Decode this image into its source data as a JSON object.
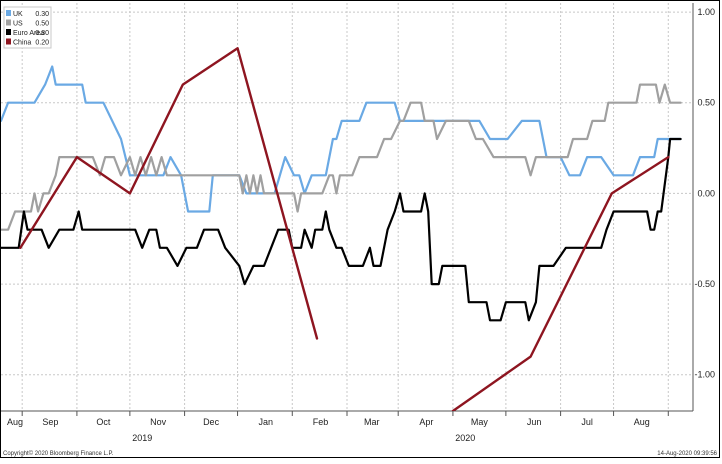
{
  "footer": {
    "copyright": "Copyright© 2020 Bloomberg Finance L.P.",
    "timestamp": "14-Aug-2020 09:39:56"
  },
  "colors": {
    "UK": "#6aa9e4",
    "US": "#a0a0a0",
    "Euro Area": "#000000",
    "China": "#8e1520",
    "grid": "#c8c8c8"
  },
  "chart_data": {
    "type": "line",
    "title": "",
    "xlabel": "",
    "ylabel": "",
    "grid": true,
    "legend_position": "top-left",
    "x_range": [
      "2019-07-20",
      "2020-08-15"
    ],
    "ylim": [
      -1.2,
      1.05
    ],
    "yticks": [
      1.0,
      0.5,
      0.0,
      -0.5,
      -1.0
    ],
    "ytick_labels": [
      "1.00",
      "0.50",
      "0.00",
      "-0.50",
      "-1.00"
    ],
    "xticks": [
      {
        "date": "2019-08-01",
        "label": "Aug"
      },
      {
        "date": "2019-09-01",
        "label": "Sep"
      },
      {
        "date": "2019-10-01",
        "label": "Oct"
      },
      {
        "date": "2019-11-01",
        "label": "Nov"
      },
      {
        "date": "2019-12-01",
        "label": "Dec"
      },
      {
        "date": "2020-01-01",
        "label": "Jan"
      },
      {
        "date": "2020-02-01",
        "label": "Feb"
      },
      {
        "date": "2020-03-01",
        "label": "Mar"
      },
      {
        "date": "2020-04-01",
        "label": "Apr"
      },
      {
        "date": "2020-05-01",
        "label": "May"
      },
      {
        "date": "2020-06-01",
        "label": "Jun"
      },
      {
        "date": "2020-07-01",
        "label": "Jul"
      },
      {
        "date": "2020-08-01",
        "label": "Aug"
      }
    ],
    "year_labels": [
      {
        "date": "2019-10-08",
        "label": "2019"
      },
      {
        "date": "2020-04-08",
        "label": "2020"
      }
    ],
    "series": [
      {
        "name": "UK",
        "last_value": "0.30",
        "points": [
          [
            "2019-07-20",
            0.4
          ],
          [
            "2019-07-24",
            0.5
          ],
          [
            "2019-08-08",
            0.5
          ],
          [
            "2019-08-14",
            0.6
          ],
          [
            "2019-08-18",
            0.7
          ],
          [
            "2019-08-20",
            0.6
          ],
          [
            "2019-09-01",
            0.6
          ],
          [
            "2019-09-04",
            0.6
          ],
          [
            "2019-09-06",
            0.5
          ],
          [
            "2019-09-16",
            0.5
          ],
          [
            "2019-09-26",
            0.3
          ],
          [
            "2019-10-01",
            0.1
          ],
          [
            "2019-10-20",
            0.1
          ],
          [
            "2019-10-24",
            0.2
          ],
          [
            "2019-10-30",
            0.1
          ],
          [
            "2019-11-03",
            -0.1
          ],
          [
            "2019-11-15",
            -0.1
          ],
          [
            "2019-11-17",
            0.1
          ],
          [
            "2019-11-25",
            0.1
          ],
          [
            "2019-12-02",
            0.1
          ],
          [
            "2019-12-06",
            0.0
          ],
          [
            "2019-12-22",
            0.0
          ],
          [
            "2019-12-28",
            0.2
          ],
          [
            "2020-01-02",
            0.1
          ],
          [
            "2020-01-05",
            0.1
          ],
          [
            "2020-01-08",
            0.0
          ],
          [
            "2020-01-12",
            0.1
          ],
          [
            "2020-01-20",
            0.1
          ],
          [
            "2020-01-24",
            0.3
          ],
          [
            "2020-01-26",
            0.3
          ],
          [
            "2020-01-29",
            0.4
          ],
          [
            "2020-02-08",
            0.4
          ],
          [
            "2020-02-12",
            0.5
          ],
          [
            "2020-02-28",
            0.5
          ],
          [
            "2020-03-02",
            0.4
          ],
          [
            "2020-03-10",
            0.4
          ],
          [
            "2020-03-14",
            0.4
          ],
          [
            "2020-03-24",
            0.4
          ],
          [
            "2020-04-08",
            0.4
          ],
          [
            "2020-04-16",
            0.4
          ],
          [
            "2020-04-22",
            0.3
          ],
          [
            "2020-05-02",
            0.3
          ],
          [
            "2020-05-10",
            0.4
          ],
          [
            "2020-05-20",
            0.4
          ],
          [
            "2020-05-24",
            0.2
          ],
          [
            "2020-06-01",
            0.2
          ],
          [
            "2020-06-06",
            0.1
          ],
          [
            "2020-06-12",
            0.1
          ],
          [
            "2020-06-16",
            0.2
          ],
          [
            "2020-06-24",
            0.2
          ],
          [
            "2020-07-01",
            0.1
          ],
          [
            "2020-07-12",
            0.1
          ],
          [
            "2020-07-16",
            0.2
          ],
          [
            "2020-07-24",
            0.2
          ],
          [
            "2020-07-26",
            0.3
          ],
          [
            "2020-08-08",
            0.3
          ]
        ]
      },
      {
        "name": "US",
        "last_value": "0.50",
        "points": [
          [
            "2019-07-20",
            -0.2
          ],
          [
            "2019-07-24",
            -0.2
          ],
          [
            "2019-07-28",
            -0.1
          ],
          [
            "2019-08-06",
            -0.1
          ],
          [
            "2019-08-08",
            0.0
          ],
          [
            "2019-08-10",
            -0.1
          ],
          [
            "2019-08-13",
            0.0
          ],
          [
            "2019-08-16",
            0.0
          ],
          [
            "2019-08-20",
            0.1
          ],
          [
            "2019-08-22",
            0.2
          ],
          [
            "2019-09-01",
            0.2
          ],
          [
            "2019-09-05",
            0.2
          ],
          [
            "2019-09-10",
            0.2
          ],
          [
            "2019-09-14",
            0.1
          ],
          [
            "2019-09-17",
            0.2
          ],
          [
            "2019-09-22",
            0.2
          ],
          [
            "2019-09-26",
            0.1
          ],
          [
            "2019-10-01",
            0.2
          ],
          [
            "2019-10-04",
            0.1
          ],
          [
            "2019-10-07",
            0.2
          ],
          [
            "2019-10-10",
            0.1
          ],
          [
            "2019-10-13",
            0.2
          ],
          [
            "2019-10-16",
            0.1
          ],
          [
            "2019-10-19",
            0.2
          ],
          [
            "2019-10-22",
            0.1
          ],
          [
            "2019-10-28",
            0.1
          ],
          [
            "2019-11-08",
            0.1
          ],
          [
            "2019-11-14",
            0.1
          ],
          [
            "2019-11-22",
            0.1
          ],
          [
            "2019-11-26",
            0.1
          ],
          [
            "2019-11-28",
            0.1
          ],
          [
            "2019-12-02",
            0.1
          ],
          [
            "2019-12-04",
            0.0
          ],
          [
            "2019-12-06",
            0.1
          ],
          [
            "2019-12-08",
            0.0
          ],
          [
            "2019-12-10",
            0.1
          ],
          [
            "2019-12-12",
            0.0
          ],
          [
            "2019-12-14",
            0.1
          ],
          [
            "2019-12-16",
            0.0
          ],
          [
            "2019-12-18",
            0.0
          ],
          [
            "2019-12-26",
            0.0
          ],
          [
            "2020-01-02",
            0.0
          ],
          [
            "2020-01-04",
            -0.1
          ],
          [
            "2020-01-06",
            0.0
          ],
          [
            "2020-01-10",
            0.0
          ],
          [
            "2020-01-18",
            0.0
          ],
          [
            "2020-01-22",
            0.1
          ],
          [
            "2020-01-24",
            0.1
          ],
          [
            "2020-01-26",
            0.0
          ],
          [
            "2020-01-28",
            0.1
          ],
          [
            "2020-02-01",
            0.1
          ],
          [
            "2020-02-04",
            0.1
          ],
          [
            "2020-02-08",
            0.2
          ],
          [
            "2020-02-10",
            0.2
          ],
          [
            "2020-02-14",
            0.2
          ],
          [
            "2020-02-18",
            0.2
          ],
          [
            "2020-02-22",
            0.3
          ],
          [
            "2020-02-26",
            0.3
          ],
          [
            "2020-03-02",
            0.4
          ],
          [
            "2020-03-04",
            0.4
          ],
          [
            "2020-03-08",
            0.5
          ],
          [
            "2020-03-14",
            0.5
          ],
          [
            "2020-03-16",
            0.4
          ],
          [
            "2020-03-21",
            0.4
          ],
          [
            "2020-03-23",
            0.3
          ],
          [
            "2020-03-28",
            0.4
          ],
          [
            "2020-04-05",
            0.4
          ],
          [
            "2020-04-10",
            0.4
          ],
          [
            "2020-04-14",
            0.3
          ],
          [
            "2020-04-18",
            0.3
          ],
          [
            "2020-04-24",
            0.2
          ],
          [
            "2020-05-06",
            0.2
          ],
          [
            "2020-05-12",
            0.2
          ],
          [
            "2020-05-15",
            0.1
          ],
          [
            "2020-05-18",
            0.2
          ],
          [
            "2020-05-24",
            0.2
          ],
          [
            "2020-06-01",
            0.2
          ],
          [
            "2020-06-05",
            0.2
          ],
          [
            "2020-06-08",
            0.3
          ],
          [
            "2020-06-16",
            0.3
          ],
          [
            "2020-06-19",
            0.4
          ],
          [
            "2020-06-26",
            0.4
          ],
          [
            "2020-06-28",
            0.5
          ],
          [
            "2020-07-01",
            0.5
          ],
          [
            "2020-07-04",
            0.5
          ],
          [
            "2020-07-08",
            0.5
          ],
          [
            "2020-07-10",
            0.5
          ],
          [
            "2020-07-14",
            0.5
          ],
          [
            "2020-07-16",
            0.6
          ],
          [
            "2020-07-25",
            0.6
          ],
          [
            "2020-07-27",
            0.5
          ],
          [
            "2020-07-30",
            0.6
          ],
          [
            "2020-08-02",
            0.5
          ],
          [
            "2020-08-08",
            0.5
          ]
        ]
      },
      {
        "name": "Euro Area",
        "last_value": "0.30",
        "points": [
          [
            "2019-07-20",
            -0.3
          ],
          [
            "2019-07-30",
            -0.3
          ],
          [
            "2019-08-02",
            -0.1
          ],
          [
            "2019-08-04",
            -0.2
          ],
          [
            "2019-08-12",
            -0.2
          ],
          [
            "2019-08-16",
            -0.3
          ],
          [
            "2019-08-22",
            -0.2
          ],
          [
            "2019-08-30",
            -0.2
          ],
          [
            "2019-09-02",
            -0.1
          ],
          [
            "2019-09-04",
            -0.2
          ],
          [
            "2019-09-14",
            -0.2
          ],
          [
            "2019-09-18",
            -0.2
          ],
          [
            "2019-09-22",
            -0.2
          ],
          [
            "2019-09-30",
            -0.2
          ],
          [
            "2019-10-04",
            -0.2
          ],
          [
            "2019-10-08",
            -0.3
          ],
          [
            "2019-10-12",
            -0.2
          ],
          [
            "2019-10-16",
            -0.2
          ],
          [
            "2019-10-18",
            -0.3
          ],
          [
            "2019-10-22",
            -0.3
          ],
          [
            "2019-10-28",
            -0.4
          ],
          [
            "2019-11-02",
            -0.3
          ],
          [
            "2019-11-08",
            -0.3
          ],
          [
            "2019-11-12",
            -0.2
          ],
          [
            "2019-11-20",
            -0.2
          ],
          [
            "2019-11-24",
            -0.3
          ],
          [
            "2019-12-02",
            -0.4
          ],
          [
            "2019-12-05",
            -0.5
          ],
          [
            "2019-12-10",
            -0.4
          ],
          [
            "2019-12-16",
            -0.4
          ],
          [
            "2019-12-20",
            -0.3
          ],
          [
            "2019-12-24",
            -0.2
          ],
          [
            "2019-12-30",
            -0.2
          ],
          [
            "2020-01-01",
            -0.3
          ],
          [
            "2020-01-06",
            -0.3
          ],
          [
            "2020-01-08",
            -0.2
          ],
          [
            "2020-01-12",
            -0.3
          ],
          [
            "2020-01-14",
            -0.2
          ],
          [
            "2020-01-18",
            -0.2
          ],
          [
            "2020-01-20",
            -0.1
          ],
          [
            "2020-01-22",
            -0.2
          ],
          [
            "2020-01-26",
            -0.3
          ],
          [
            "2020-01-29",
            -0.3
          ],
          [
            "2020-02-02",
            -0.4
          ],
          [
            "2020-02-10",
            -0.4
          ],
          [
            "2020-02-14",
            -0.3
          ],
          [
            "2020-02-16",
            -0.4
          ],
          [
            "2020-02-20",
            -0.4
          ],
          [
            "2020-02-24",
            -0.2
          ],
          [
            "2020-02-28",
            -0.1
          ],
          [
            "2020-03-02",
            0.0
          ],
          [
            "2020-03-04",
            -0.1
          ],
          [
            "2020-03-10",
            -0.1
          ],
          [
            "2020-03-14",
            -0.1
          ],
          [
            "2020-03-16",
            0.0
          ],
          [
            "2020-03-18",
            -0.1
          ],
          [
            "2020-03-20",
            -0.5
          ],
          [
            "2020-03-24",
            -0.5
          ],
          [
            "2020-03-26",
            -0.4
          ],
          [
            "2020-04-08",
            -0.4
          ],
          [
            "2020-04-10",
            -0.6
          ],
          [
            "2020-04-20",
            -0.6
          ],
          [
            "2020-04-22",
            -0.7
          ],
          [
            "2020-04-28",
            -0.7
          ],
          [
            "2020-05-01",
            -0.6
          ],
          [
            "2020-05-12",
            -0.6
          ],
          [
            "2020-05-14",
            -0.7
          ],
          [
            "2020-05-18",
            -0.6
          ],
          [
            "2020-05-20",
            -0.4
          ],
          [
            "2020-05-28",
            -0.4
          ],
          [
            "2020-06-04",
            -0.3
          ],
          [
            "2020-06-08",
            -0.3
          ],
          [
            "2020-06-10",
            -0.3
          ],
          [
            "2020-06-12",
            -0.3
          ],
          [
            "2020-06-16",
            -0.3
          ],
          [
            "2020-06-20",
            -0.3
          ],
          [
            "2020-06-24",
            -0.3
          ],
          [
            "2020-06-27",
            -0.2
          ],
          [
            "2020-07-01",
            -0.1
          ],
          [
            "2020-07-10",
            -0.1
          ],
          [
            "2020-07-20",
            -0.1
          ],
          [
            "2020-07-22",
            -0.2
          ],
          [
            "2020-07-24",
            -0.2
          ],
          [
            "2020-07-26",
            -0.1
          ],
          [
            "2020-07-28",
            -0.1
          ],
          [
            "2020-08-01",
            0.2
          ],
          [
            "2020-08-02",
            0.3
          ],
          [
            "2020-08-05",
            0.3
          ],
          [
            "2020-08-08",
            0.3
          ]
        ]
      },
      {
        "name": "China",
        "last_value": "0.20",
        "points": [
          [
            "2019-07-31",
            -0.3
          ],
          [
            "2019-09-01",
            0.2
          ],
          [
            "2019-10-01",
            0.0
          ],
          [
            "2019-10-31",
            0.6
          ],
          [
            "2019-12-01",
            0.8
          ],
          [
            "2020-01-15",
            -0.8
          ],
          [
            "2020-04-01",
            -1.2
          ],
          [
            "2020-05-15",
            -0.9
          ],
          [
            "2020-06-30",
            0.0
          ],
          [
            "2020-08-01",
            0.2
          ]
        ],
        "segments": [
          [
            0,
            5
          ],
          [
            6,
            9
          ]
        ]
      }
    ]
  }
}
